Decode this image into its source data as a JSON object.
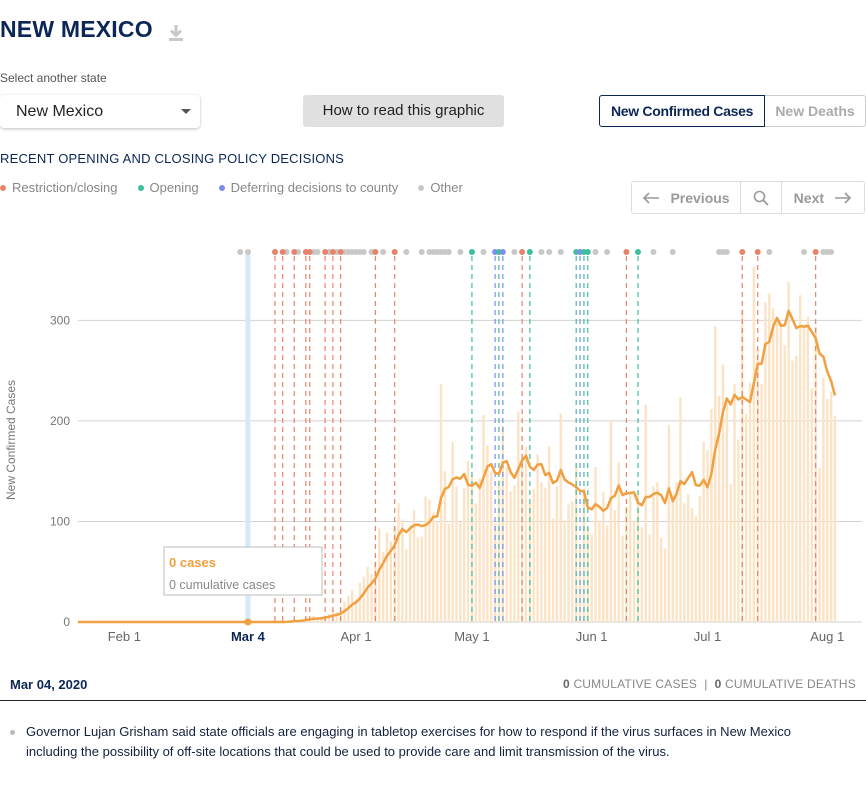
{
  "header": {
    "title": "NEW MEXICO"
  },
  "state_selector": {
    "label": "Select another state",
    "value": "New Mexico"
  },
  "how_button": {
    "label": "How to read this graphic"
  },
  "toggle": {
    "active": "New Confirmed Cases",
    "inactive": "New Deaths"
  },
  "policy": {
    "heading": "RECENT OPENING AND CLOSING POLICY DECISIONS",
    "legend": [
      {
        "label": "Restriction/closing",
        "color": "#e8836b"
      },
      {
        "label": "Opening",
        "color": "#3dbf9d"
      },
      {
        "label": "Deferring decisions to county",
        "color": "#7b8ef0"
      },
      {
        "label": "Other",
        "color": "#c8c8c8"
      }
    ]
  },
  "pager": {
    "previous": "Previous",
    "next": "Next"
  },
  "tooltip": {
    "cases": "0 cases",
    "cumulative": "0 cumulative cases"
  },
  "footer": {
    "date": "Mar 04, 2020",
    "cases_num": "0",
    "cases_label": "CUMULATIVE CASES",
    "deaths_num": "0",
    "deaths_label": "CUMULATIVE DEATHS",
    "separator": "|"
  },
  "note": "Governor Lujan Grisham said state officials are engaging in tabletop exercises for how to respond if the virus surfaces in New Mexico including the possibility of off-site locations that could be used to provide care and limit transmission of the virus.",
  "chart_data": {
    "type": "bar",
    "ylabel": "New Confirmed Cases",
    "ylim": [
      0,
      370
    ],
    "yticks": [
      0,
      100,
      200,
      300
    ],
    "x_range": [
      "2020-01-20",
      "2020-08-10"
    ],
    "xticks": [
      {
        "date": "2020-02-01",
        "label": "Feb 1"
      },
      {
        "date": "2020-03-01",
        "label": "M"
      },
      {
        "date": "2020-04-01",
        "label": "Apr 1"
      },
      {
        "date": "2020-05-01",
        "label": "May 1"
      },
      {
        "date": "2020-06-01",
        "label": "Jun 1"
      },
      {
        "date": "2020-07-01",
        "label": "Jul 1"
      },
      {
        "date": "2020-08-01",
        "label": "Aug 1"
      }
    ],
    "selected_date": "2020-03-04",
    "selected_label": "Mar 4",
    "avg_color": "#f0a040",
    "bar_color": "#fbe3c5",
    "daily_start": "2020-01-20",
    "daily_values": [
      0,
      0,
      0,
      0,
      0,
      0,
      0,
      0,
      0,
      0,
      0,
      0,
      0,
      0,
      0,
      0,
      0,
      0,
      0,
      0,
      0,
      0,
      0,
      0,
      0,
      0,
      0,
      0,
      0,
      0,
      0,
      0,
      0,
      0,
      0,
      0,
      0,
      0,
      0,
      0,
      0,
      0,
      0,
      0,
      0,
      0,
      0,
      0,
      0,
      0,
      0,
      0,
      0,
      0,
      1,
      2,
      3,
      1,
      2,
      5,
      4,
      6,
      3,
      5,
      6,
      8,
      12,
      10,
      14,
      20,
      26,
      32,
      23,
      39,
      45,
      55,
      48,
      60,
      93,
      70,
      89,
      80,
      95,
      118,
      102,
      72,
      96,
      111,
      84,
      85,
      125,
      122,
      109,
      99,
      237,
      150,
      98,
      179,
      135,
      99,
      133,
      160,
      146,
      118,
      143,
      206,
      176,
      150,
      98,
      141,
      195,
      154,
      130,
      136,
      209,
      160,
      174,
      118,
      132,
      167,
      139,
      133,
      175,
      103,
      135,
      207,
      101,
      117,
      120,
      156,
      77,
      133,
      94,
      87,
      154,
      101,
      129,
      96,
      201,
      111,
      159,
      86,
      115,
      130,
      101,
      128,
      94,
      216,
      87,
      135,
      139,
      84,
      73,
      196,
      127,
      139,
      223,
      118,
      127,
      113,
      105,
      125,
      179,
      171,
      212,
      294,
      225,
      256,
      220,
      137,
      237,
      181,
      311,
      207,
      238,
      353,
      271,
      237,
      318,
      327,
      312,
      299,
      298,
      275,
      338,
      260,
      265,
      325,
      296,
      304,
      232,
      294,
      153,
      243,
      222,
      229,
      205
    ]
  },
  "markers": [
    {
      "date": "2020-03-11",
      "type": "restriction"
    },
    {
      "date": "2020-03-13",
      "type": "restriction"
    },
    {
      "date": "2020-03-16",
      "type": "restriction"
    },
    {
      "date": "2020-03-19",
      "type": "restriction"
    },
    {
      "date": "2020-03-20",
      "type": "restriction"
    },
    {
      "date": "2020-03-24",
      "type": "restriction"
    },
    {
      "date": "2020-03-26",
      "type": "restriction"
    },
    {
      "date": "2020-03-28",
      "type": "restriction"
    },
    {
      "date": "2020-04-06",
      "type": "restriction"
    },
    {
      "date": "2020-04-11",
      "type": "restriction"
    },
    {
      "date": "2020-05-01",
      "type": "opening"
    },
    {
      "date": "2020-05-07",
      "type": "county"
    },
    {
      "date": "2020-05-08",
      "type": "opening"
    },
    {
      "date": "2020-05-09",
      "type": "county"
    },
    {
      "date": "2020-05-14",
      "type": "restriction"
    },
    {
      "date": "2020-05-16",
      "type": "opening"
    },
    {
      "date": "2020-05-28",
      "type": "opening"
    },
    {
      "date": "2020-05-29",
      "type": "county"
    },
    {
      "date": "2020-05-30",
      "type": "opening"
    },
    {
      "date": "2020-05-31",
      "type": "opening"
    },
    {
      "date": "2020-06-10",
      "type": "restriction"
    },
    {
      "date": "2020-06-13",
      "type": "opening"
    },
    {
      "date": "2020-07-10",
      "type": "restriction"
    },
    {
      "date": "2020-07-14",
      "type": "restriction"
    },
    {
      "date": "2020-07-29",
      "type": "restriction"
    }
  ],
  "other_dates": [
    "2020-03-02",
    "2020-03-04",
    "2020-03-14",
    "2020-03-17",
    "2020-03-21",
    "2020-03-22",
    "2020-03-25",
    "2020-03-27",
    "2020-03-29",
    "2020-03-30",
    "2020-03-31",
    "2020-04-01",
    "2020-04-02",
    "2020-04-03",
    "2020-04-05",
    "2020-04-08",
    "2020-04-14",
    "2020-04-18",
    "2020-04-20",
    "2020-04-21",
    "2020-04-22",
    "2020-04-23",
    "2020-04-24",
    "2020-04-25",
    "2020-04-28",
    "2020-05-04",
    "2020-05-12",
    "2020-05-19",
    "2020-05-21",
    "2020-05-24",
    "2020-06-02",
    "2020-06-05",
    "2020-06-17",
    "2020-06-22",
    "2020-07-04",
    "2020-07-05",
    "2020-07-06",
    "2020-07-17",
    "2020-07-26",
    "2020-07-31",
    "2020-08-01",
    "2020-08-02"
  ]
}
